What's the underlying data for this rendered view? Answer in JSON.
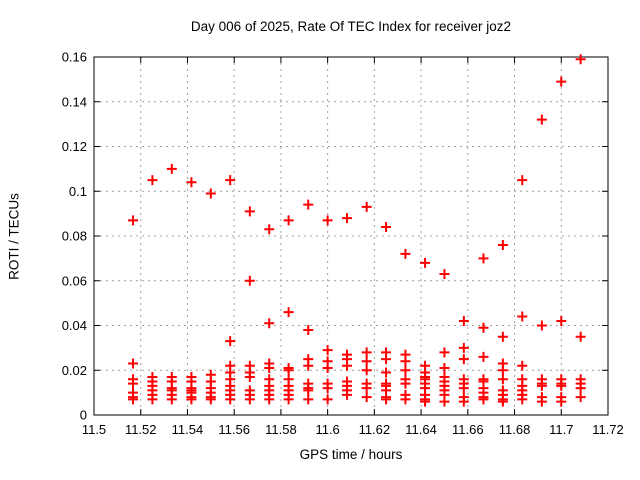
{
  "chart_data": {
    "type": "scatter",
    "title": "Day 006 of 2025, Rate Of TEC Index for receiver joz2",
    "xlabel": "GPS time / hours",
    "ylabel": "ROTI / TECUs",
    "xlim": [
      11.5,
      11.72
    ],
    "ylim": [
      0,
      0.16
    ],
    "xtick_labels": [
      "11.5",
      "11.52",
      "11.54",
      "11.56",
      "11.58",
      "11.6",
      "11.62",
      "11.64",
      "11.66",
      "11.68",
      "11.7",
      "11.72"
    ],
    "ytick_labels": [
      "0",
      "0.02",
      "0.04",
      "0.06",
      "0.08",
      "0.1",
      "0.12",
      "0.14",
      "0.16"
    ],
    "grid": true,
    "legend_position": "none",
    "marker": "plus",
    "colors": {
      "marker": "#ff0000",
      "grid": "#a0a0a0",
      "axis": "#000000",
      "background": "#ffffff",
      "text": "#000000"
    },
    "series": [
      {
        "name": "ROTI",
        "epochs": [
          {
            "t": 11.5167,
            "roti": [
              0.087,
              0.023,
              0.016,
              0.014,
              0.01,
              0.008,
              0.007
            ]
          },
          {
            "t": 11.525,
            "roti": [
              0.105,
              0.017,
              0.015,
              0.013,
              0.011,
              0.009,
              0.007
            ]
          },
          {
            "t": 11.5333,
            "roti": [
              0.11,
              0.017,
              0.015,
              0.012,
              0.011,
              0.009,
              0.007
            ]
          },
          {
            "t": 11.5417,
            "roti": [
              0.104,
              0.017,
              0.015,
              0.012,
              0.011,
              0.01,
              0.008,
              0.007
            ]
          },
          {
            "t": 11.55,
            "roti": [
              0.099,
              0.018,
              0.015,
              0.012,
              0.01,
              0.008,
              0.007
            ]
          },
          {
            "t": 11.5583,
            "roti": [
              0.105,
              0.033,
              0.022,
              0.019,
              0.016,
              0.013,
              0.011,
              0.009,
              0.007
            ]
          },
          {
            "t": 11.5667,
            "roti": [
              0.091,
              0.06,
              0.022,
              0.019,
              0.017,
              0.011,
              0.009,
              0.007
            ]
          },
          {
            "t": 11.575,
            "roti": [
              0.083,
              0.041,
              0.023,
              0.021,
              0.016,
              0.013,
              0.011,
              0.009,
              0.007
            ]
          },
          {
            "t": 11.5833,
            "roti": [
              0.087,
              0.046,
              0.021,
              0.02,
              0.016,
              0.013,
              0.011,
              0.009,
              0.007
            ]
          },
          {
            "t": 11.5917,
            "roti": [
              0.094,
              0.038,
              0.025,
              0.022,
              0.014,
              0.012,
              0.011,
              0.007
            ]
          },
          {
            "t": 11.6,
            "roti": [
              0.087,
              0.029,
              0.024,
              0.021,
              0.014,
              0.012,
              0.007
            ]
          },
          {
            "t": 11.6083,
            "roti": [
              0.088,
              0.027,
              0.025,
              0.022,
              0.015,
              0.013,
              0.011,
              0.009
            ]
          },
          {
            "t": 11.6167,
            "roti": [
              0.093,
              0.028,
              0.024,
              0.02,
              0.014,
              0.012,
              0.008
            ]
          },
          {
            "t": 11.625,
            "roti": [
              0.084,
              0.028,
              0.025,
              0.019,
              0.014,
              0.013,
              0.011,
              0.008,
              0.007
            ]
          },
          {
            "t": 11.6333,
            "roti": [
              0.072,
              0.027,
              0.024,
              0.02,
              0.016,
              0.014,
              0.009,
              0.007
            ]
          },
          {
            "t": 11.6417,
            "roti": [
              0.068,
              0.022,
              0.019,
              0.017,
              0.016,
              0.014,
              0.012,
              0.009,
              0.007,
              0.006
            ]
          },
          {
            "t": 11.65,
            "roti": [
              0.063,
              0.028,
              0.021,
              0.017,
              0.015,
              0.013,
              0.011,
              0.009,
              0.006
            ]
          },
          {
            "t": 11.6583,
            "roti": [
              0.042,
              0.03,
              0.025,
              0.016,
              0.014,
              0.012,
              0.008,
              0.006
            ]
          },
          {
            "t": 11.6667,
            "roti": [
              0.07,
              0.039,
              0.026,
              0.016,
              0.015,
              0.012,
              0.01,
              0.008,
              0.007
            ]
          },
          {
            "t": 11.675,
            "roti": [
              0.076,
              0.035,
              0.023,
              0.02,
              0.016,
              0.011,
              0.009,
              0.007,
              0.006
            ]
          },
          {
            "t": 11.6833,
            "roti": [
              0.105,
              0.044,
              0.022,
              0.016,
              0.013,
              0.011,
              0.009,
              0.007
            ]
          },
          {
            "t": 11.6917,
            "roti": [
              0.132,
              0.04,
              0.016,
              0.014,
              0.013,
              0.008,
              0.006
            ]
          },
          {
            "t": 11.7,
            "roti": [
              0.149,
              0.042,
              0.016,
              0.014,
              0.013,
              0.008,
              0.006
            ]
          },
          {
            "t": 11.7083,
            "roti": [
              0.159,
              0.035,
              0.016,
              0.014,
              0.012,
              0.008
            ]
          }
        ]
      }
    ]
  }
}
